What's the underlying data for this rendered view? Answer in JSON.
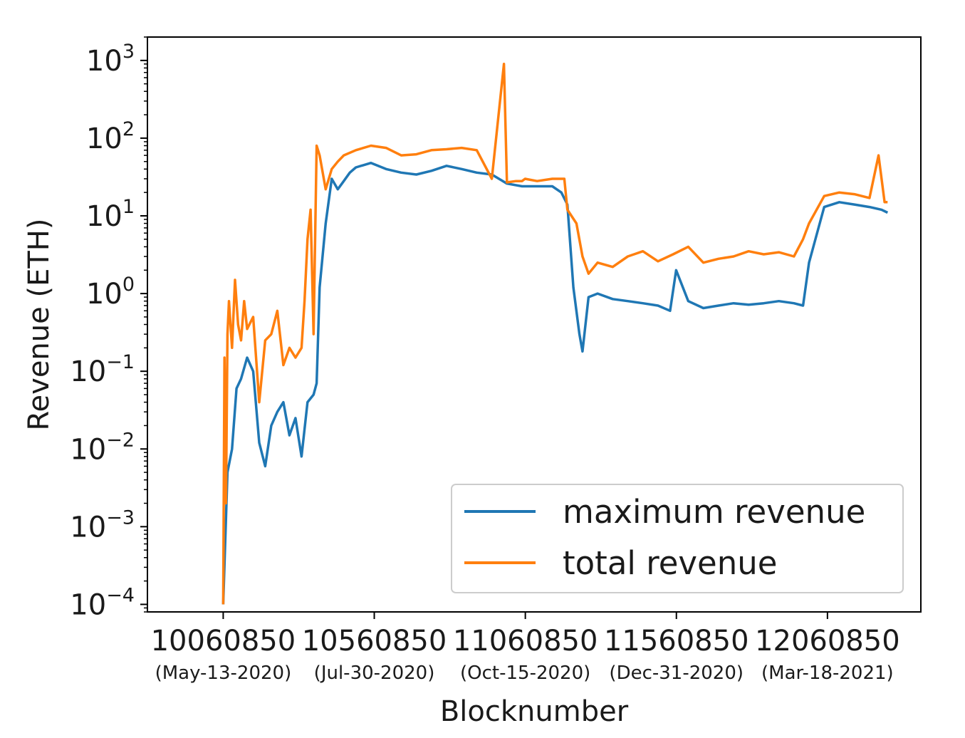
{
  "chart_data": {
    "type": "line",
    "xlabel": "Blocknumber",
    "ylabel": "Revenue (ETH)",
    "yscale": "log",
    "xlim": [
      9810000,
      12370000
    ],
    "ylim": [
      8e-05,
      2000
    ],
    "x_ticks": [
      {
        "value": 10060850,
        "label": "10060850",
        "date": "(May-13-2020)"
      },
      {
        "value": 10560850,
        "label": "10560850",
        "date": "(Jul-30-2020)"
      },
      {
        "value": 11060850,
        "label": "11060850",
        "date": "(Oct-15-2020)"
      },
      {
        "value": 11560850,
        "label": "11560850",
        "date": "(Dec-31-2020)"
      },
      {
        "value": 12060850,
        "label": "12060850",
        "date": "(Mar-18-2021)"
      }
    ],
    "y_ticks": [
      {
        "value": 0.0001,
        "base": "10",
        "exp": "−4"
      },
      {
        "value": 0.001,
        "base": "10",
        "exp": "−3"
      },
      {
        "value": 0.01,
        "base": "10",
        "exp": "−2"
      },
      {
        "value": 0.1,
        "base": "10",
        "exp": "−1"
      },
      {
        "value": 1,
        "base": "10",
        "exp": "0"
      },
      {
        "value": 10,
        "base": "10",
        "exp": "1"
      },
      {
        "value": 100,
        "base": "10",
        "exp": "2"
      },
      {
        "value": 1000,
        "base": "10",
        "exp": "3"
      }
    ],
    "legend_position": "lower-right",
    "grid": false,
    "series": [
      {
        "name": "maximum revenue",
        "color": "#1f77b4",
        "x": [
          10060850,
          10075000,
          10090000,
          10105000,
          10120000,
          10140000,
          10160000,
          10180000,
          10200000,
          10220000,
          10240000,
          10260000,
          10280000,
          10300000,
          10320000,
          10340000,
          10360000,
          10370000,
          10380000,
          10400000,
          10420000,
          10440000,
          10460000,
          10480000,
          10500000,
          10550000,
          10600000,
          10650000,
          10700000,
          10750000,
          10800000,
          10850000,
          10900000,
          10950000,
          11000000,
          11050000,
          11100000,
          11150000,
          11180000,
          11200000,
          11220000,
          11240000,
          11250000,
          11270000,
          11300000,
          11350000,
          11400000,
          11450000,
          11500000,
          11540000,
          11560000,
          11600000,
          11650000,
          11700000,
          11750000,
          11800000,
          11850000,
          11900000,
          11950000,
          11980000,
          12000000,
          12050000,
          12100000,
          12150000,
          12200000,
          12240000,
          12260000
        ],
        "y": [
          0.0001,
          0.005,
          0.01,
          0.06,
          0.08,
          0.15,
          0.1,
          0.012,
          0.006,
          0.02,
          0.03,
          0.04,
          0.015,
          0.025,
          0.008,
          0.04,
          0.05,
          0.07,
          1.2,
          8,
          30,
          22,
          28,
          36,
          42,
          48,
          40,
          36,
          34,
          38,
          44,
          40,
          36,
          34,
          26,
          24,
          24,
          24,
          20,
          14,
          1.2,
          0.3,
          0.18,
          0.9,
          1.0,
          0.85,
          0.8,
          0.75,
          0.7,
          0.6,
          2,
          0.8,
          0.65,
          0.7,
          0.75,
          0.72,
          0.75,
          0.8,
          0.75,
          0.7,
          2.5,
          13,
          15,
          14,
          13,
          12,
          11
        ]
      },
      {
        "name": "total revenue",
        "color": "#ff7f0e",
        "x": [
          10060850,
          10065000,
          10070000,
          10075000,
          10080000,
          10090000,
          10100000,
          10110000,
          10120000,
          10130000,
          10140000,
          10160000,
          10180000,
          10200000,
          10220000,
          10240000,
          10260000,
          10280000,
          10300000,
          10320000,
          10330000,
          10340000,
          10350000,
          10360000,
          10370000,
          10380000,
          10400000,
          10420000,
          10440000,
          10460000,
          10500000,
          10550000,
          10600000,
          10650000,
          10700000,
          10750000,
          10800000,
          10850000,
          10900000,
          10950000,
          10990000,
          11000000,
          11030000,
          11050000,
          11060000,
          11100000,
          11150000,
          11190000,
          11200000,
          11230000,
          11250000,
          11270000,
          11300000,
          11350000,
          11400000,
          11450000,
          11500000,
          11550000,
          11600000,
          11650000,
          11700000,
          11750000,
          11800000,
          11850000,
          11900000,
          11950000,
          11980000,
          12000000,
          12050000,
          12100000,
          12150000,
          12200000,
          12230000,
          12250000,
          12260000
        ],
        "y": [
          0.0001,
          0.15,
          0.002,
          0.3,
          0.8,
          0.2,
          1.5,
          0.4,
          0.25,
          0.8,
          0.35,
          0.5,
          0.04,
          0.25,
          0.3,
          0.6,
          0.12,
          0.2,
          0.15,
          0.2,
          0.8,
          5,
          12,
          0.3,
          80,
          60,
          22,
          40,
          50,
          60,
          70,
          80,
          75,
          60,
          62,
          70,
          72,
          75,
          70,
          30,
          900,
          27,
          28,
          28,
          30,
          28,
          30,
          30,
          12,
          8,
          3,
          1.8,
          2.5,
          2.2,
          3,
          3.5,
          2.6,
          3.2,
          4,
          2.5,
          2.8,
          3,
          3.5,
          3.2,
          3.4,
          3,
          5,
          8,
          18,
          20,
          19,
          17,
          60,
          15,
          15
        ]
      }
    ]
  }
}
